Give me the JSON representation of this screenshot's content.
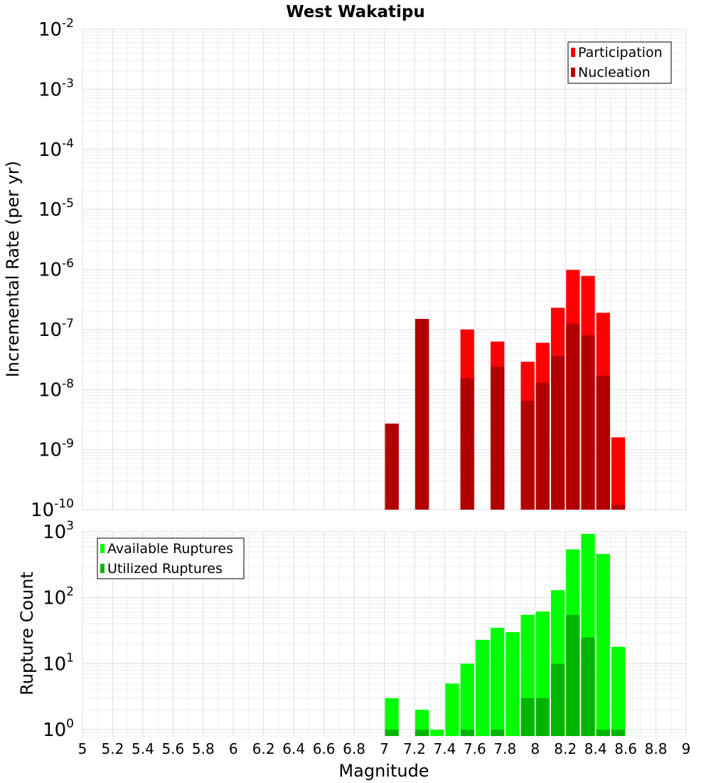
{
  "chart_data": [
    {
      "type": "bar",
      "title": "West Wakatipu",
      "xlabel": "",
      "ylabel": "Incremental Rate (per yr)",
      "xlim": [
        5,
        9
      ],
      "ylim": [
        1e-10,
        0.01
      ],
      "yscale": "log",
      "grid": true,
      "bar_width": 0.1,
      "y_ticks": [
        {
          "base": "10",
          "exp": "-10"
        },
        {
          "base": "10",
          "exp": "-9"
        },
        {
          "base": "10",
          "exp": "-8"
        },
        {
          "base": "10",
          "exp": "-7"
        },
        {
          "base": "10",
          "exp": "-6"
        },
        {
          "base": "10",
          "exp": "-5"
        },
        {
          "base": "10",
          "exp": "-4"
        },
        {
          "base": "10",
          "exp": "-3"
        },
        {
          "base": "10",
          "exp": "-2"
        }
      ],
      "legend_position": "top-right",
      "series": [
        {
          "name": "Participation",
          "color": "#ff0000",
          "points": [
            {
              "x": 7.05,
              "y": 2.7e-09
            },
            {
              "x": 7.25,
              "y": 1.5e-07
            },
            {
              "x": 7.55,
              "y": 1e-07
            },
            {
              "x": 7.75,
              "y": 6.3e-08
            },
            {
              "x": 7.95,
              "y": 2.9e-08
            },
            {
              "x": 8.05,
              "y": 6e-08
            },
            {
              "x": 8.15,
              "y": 2.3e-07
            },
            {
              "x": 8.25,
              "y": 9.8e-07
            },
            {
              "x": 8.35,
              "y": 7.8e-07
            },
            {
              "x": 8.45,
              "y": 1.9e-07
            },
            {
              "x": 8.55,
              "y": 1.6e-09
            }
          ]
        },
        {
          "name": "Nucleation",
          "color": "#b20000",
          "points": [
            {
              "x": 7.05,
              "y": 2.7e-09
            },
            {
              "x": 7.25,
              "y": 1.5e-07
            },
            {
              "x": 7.55,
              "y": 1.55e-08
            },
            {
              "x": 7.75,
              "y": 2.4e-08
            },
            {
              "x": 7.95,
              "y": 6.5e-09
            },
            {
              "x": 8.05,
              "y": 1.3e-08
            },
            {
              "x": 8.15,
              "y": 3.6e-08
            },
            {
              "x": 8.25,
              "y": 1.25e-07
            },
            {
              "x": 8.35,
              "y": 8e-08
            },
            {
              "x": 8.45,
              "y": 1.7e-08
            },
            {
              "x": 8.55,
              "y": 1.2e-10
            }
          ]
        }
      ]
    },
    {
      "type": "bar",
      "title": "",
      "xlabel": "Magnitude",
      "ylabel": "Rupture Count",
      "xlim": [
        5,
        9
      ],
      "ylim": [
        0.8,
        1000
      ],
      "yscale": "log",
      "grid": true,
      "bar_width": 0.1,
      "x_ticks": [
        "5",
        "5.2",
        "5.4",
        "5.6",
        "5.8",
        "6",
        "6.2",
        "6.4",
        "6.6",
        "6.8",
        "7",
        "7.2",
        "7.4",
        "7.6",
        "7.8",
        "8",
        "8.2",
        "8.4",
        "8.6",
        "8.8",
        "9"
      ],
      "y_ticks": [
        {
          "base": "10",
          "exp": "0"
        },
        {
          "base": "10",
          "exp": "1"
        },
        {
          "base": "10",
          "exp": "2"
        },
        {
          "base": "10",
          "exp": "3"
        }
      ],
      "legend_position": "top-left",
      "series": [
        {
          "name": "Available Ruptures",
          "color": "#00ff00",
          "points": [
            {
              "x": 7.05,
              "y": 3
            },
            {
              "x": 7.25,
              "y": 2
            },
            {
              "x": 7.35,
              "y": 1
            },
            {
              "x": 7.45,
              "y": 5
            },
            {
              "x": 7.55,
              "y": 10
            },
            {
              "x": 7.65,
              "y": 23
            },
            {
              "x": 7.75,
              "y": 35
            },
            {
              "x": 7.85,
              "y": 30
            },
            {
              "x": 7.95,
              "y": 55
            },
            {
              "x": 8.05,
              "y": 62
            },
            {
              "x": 8.15,
              "y": 130
            },
            {
              "x": 8.25,
              "y": 540
            },
            {
              "x": 8.35,
              "y": 930
            },
            {
              "x": 8.45,
              "y": 460
            },
            {
              "x": 8.55,
              "y": 18
            }
          ]
        },
        {
          "name": "Utilized Ruptures",
          "color": "#00b400",
          "points": [
            {
              "x": 7.05,
              "y": 1
            },
            {
              "x": 7.25,
              "y": 1
            },
            {
              "x": 7.55,
              "y": 1
            },
            {
              "x": 7.75,
              "y": 1
            },
            {
              "x": 7.95,
              "y": 3
            },
            {
              "x": 8.05,
              "y": 3
            },
            {
              "x": 8.15,
              "y": 10
            },
            {
              "x": 8.25,
              "y": 55
            },
            {
              "x": 8.35,
              "y": 25
            },
            {
              "x": 8.45,
              "y": 1
            },
            {
              "x": 8.55,
              "y": 1
            }
          ]
        }
      ]
    }
  ]
}
